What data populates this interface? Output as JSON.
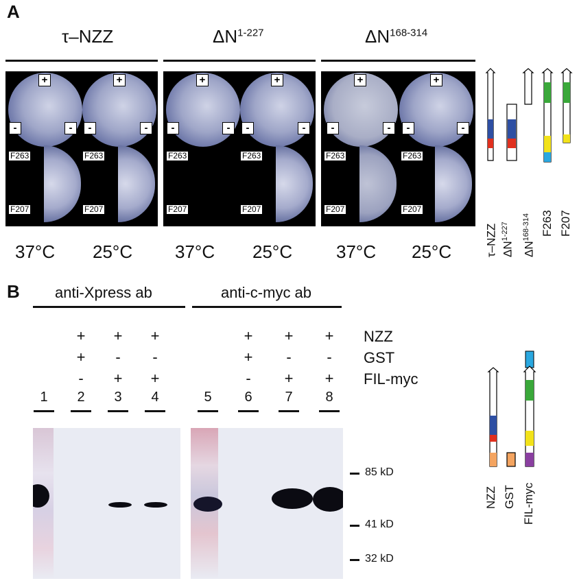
{
  "panelA": {
    "letter": "A",
    "titles": [
      {
        "main": "τ–NZZ",
        "sup": ""
      },
      {
        "main": "ΔN",
        "sup": "1-227"
      },
      {
        "main": "ΔN",
        "sup": "168-314"
      }
    ],
    "plate_signs": {
      "plus": "+",
      "minus": "-"
    },
    "strain_labels": [
      "F263",
      "F207"
    ],
    "temperatures": [
      "37°C",
      "25°C",
      "37°C",
      "25°C",
      "37°C",
      "25°C"
    ],
    "construct_labels": [
      {
        "main": "τ–NZZ",
        "sup": ""
      },
      {
        "main": "ΔN",
        "sup": "1-227"
      },
      {
        "main": "ΔN",
        "sup": "168-314"
      },
      {
        "main": "F263",
        "sup": ""
      },
      {
        "main": "F207",
        "sup": ""
      }
    ]
  },
  "panelB": {
    "letter": "B",
    "antibodies": [
      "anti-Xpress ab",
      "anti-c-myc ab"
    ],
    "row_labels": [
      "NZZ",
      "GST",
      "FIL-myc"
    ],
    "rows": [
      [
        "",
        "+",
        "+",
        "+",
        "",
        "+",
        "+",
        "+"
      ],
      [
        "",
        "+",
        "-",
        "-",
        "",
        "+",
        "-",
        "-"
      ],
      [
        "",
        "-",
        "+",
        "+",
        "",
        "-",
        "+",
        "+"
      ]
    ],
    "lanes": [
      "1",
      "2",
      "3",
      "4",
      "5",
      "6",
      "7",
      "8"
    ],
    "markers": [
      "85 kD",
      "41 kD",
      "32 kD"
    ],
    "construct_labels": [
      "NZZ",
      "GST",
      "FIL-myc"
    ]
  },
  "colors": {
    "blue": "#2e4fa3",
    "red": "#e0301e",
    "green": "#3aa83a",
    "yellow": "#f2e21a",
    "cyan": "#2aa8e0",
    "orange": "#f4a460",
    "purple": "#8a3fa0"
  }
}
